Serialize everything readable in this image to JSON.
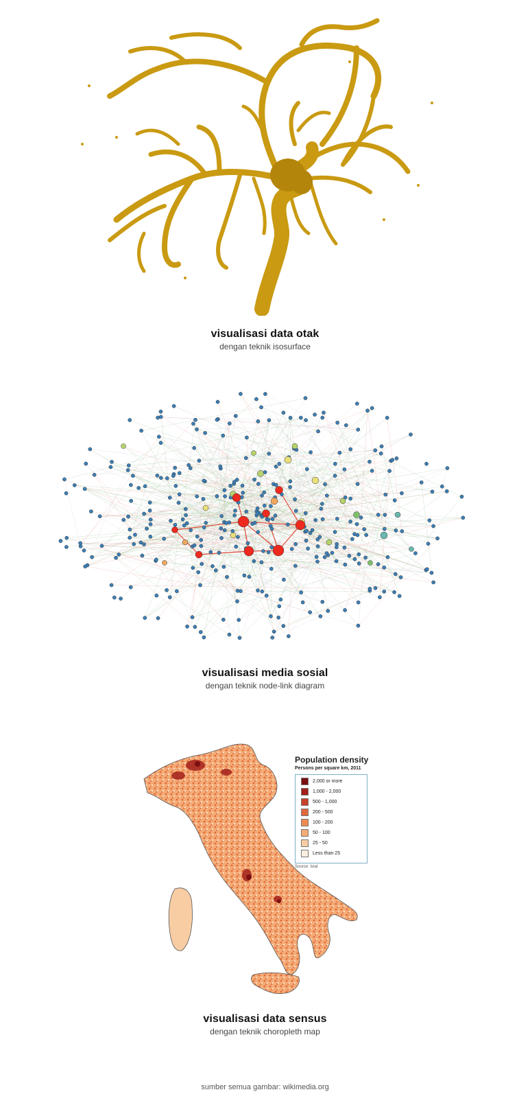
{
  "panels": [
    {
      "title": "visualisasi data otak",
      "subtitle": "dengan teknik isosurface"
    },
    {
      "title": "visualisasi media sosial",
      "subtitle": "dengan teknik node-link diagram"
    },
    {
      "title": "visualisasi data sensus",
      "subtitle": "dengan teknik choropleth map"
    }
  ],
  "map_legend": {
    "title": "Population density",
    "subtitle": "Persons per square km, 2011",
    "items": [
      {
        "label": "2,000 or more",
        "color": "#7a1010"
      },
      {
        "label": "1,000 - 2,000",
        "color": "#a3201a"
      },
      {
        "label": "500 - 1,000",
        "color": "#c8402a"
      },
      {
        "label": "200 - 500",
        "color": "#e0683c"
      },
      {
        "label": "100 - 200",
        "color": "#ee8a52"
      },
      {
        "label": "50 - 100",
        "color": "#f4ab75"
      },
      {
        "label": "25 - 50",
        "color": "#f8cda4"
      },
      {
        "label": "Less than 25",
        "color": "#fbeee0"
      }
    ],
    "source": "Source: Istat"
  },
  "credit": "sumber semua gambar: wikimedia.org"
}
